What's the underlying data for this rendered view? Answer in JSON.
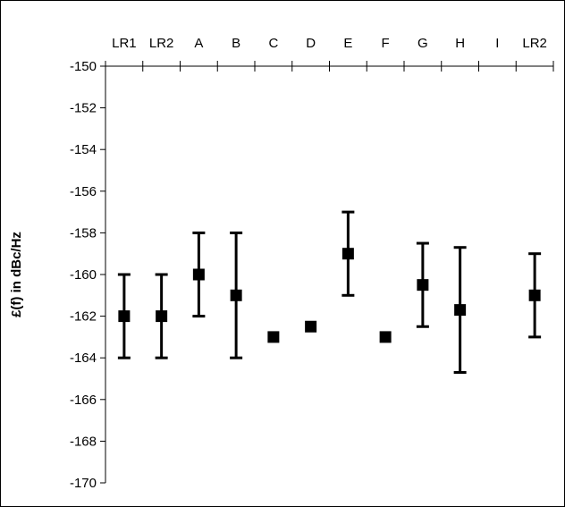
{
  "chart_data": {
    "type": "scatter",
    "title": "",
    "ylabel": "£(f) in dBc/Hz",
    "xlabel": "",
    "ylim": [
      -170,
      -150
    ],
    "y_ticks": [
      -150,
      -152,
      -154,
      -156,
      -158,
      -160,
      -162,
      -164,
      -166,
      -168,
      -170
    ],
    "y_tick_labels": [
      "-150",
      "-152",
      "-154",
      "-156",
      "-158",
      "-160",
      "-162",
      "-164",
      "-166",
      "-168",
      "-170"
    ],
    "categories": [
      "LR1",
      "LR2",
      "A",
      "B",
      "C",
      "D",
      "E",
      "F",
      "G",
      "H",
      "I",
      "LR2"
    ],
    "x_axis_position": "top",
    "grid": false,
    "legend": "none",
    "marker": "square",
    "color": "#000000",
    "series": [
      {
        "values": [
          -162,
          -162,
          -160,
          -161,
          -163,
          -162.5,
          -159,
          -163,
          -160.5,
          -161.7,
          null,
          -161
        ],
        "error_low": [
          -164,
          -164,
          -162,
          -164,
          null,
          null,
          -161,
          null,
          -162.5,
          -164.7,
          null,
          -163
        ],
        "error_high": [
          -160,
          -160,
          -158,
          -158,
          null,
          null,
          -157,
          null,
          -158.5,
          -158.7,
          null,
          -159
        ]
      }
    ]
  }
}
